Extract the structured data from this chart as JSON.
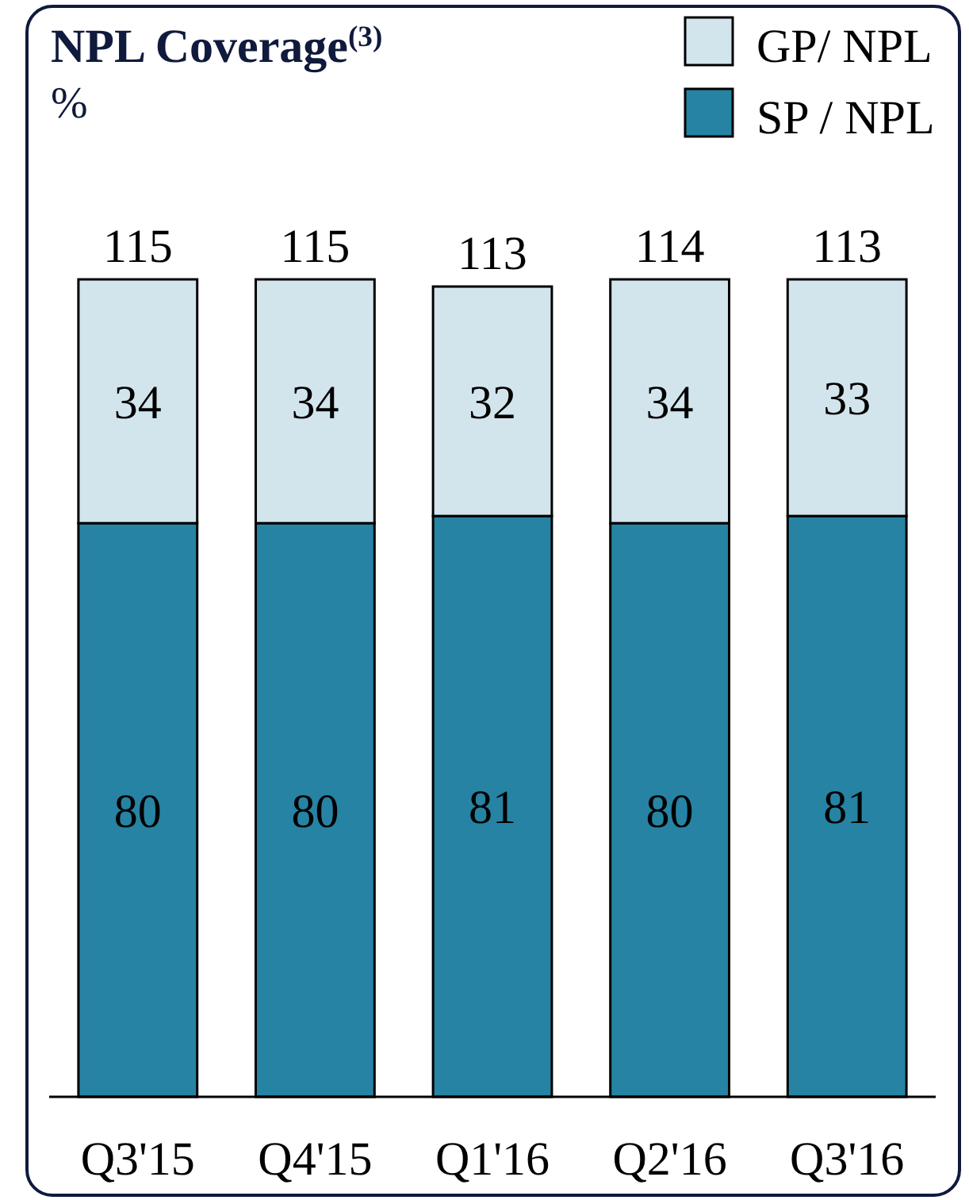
{
  "chart_data": {
    "type": "bar",
    "title": "NPL Coverage$^{(3)}$",
    "subtitle": "%",
    "categories": [
      "Q3'15",
      "Q4'15",
      "Q1'16",
      "Q2'16",
      "Q3'16"
    ],
    "stacked": true,
    "series": [
      {
        "name": "SP / NPL",
        "color": "#2683a3",
        "values": [
          80,
          80,
          81,
          80,
          81
        ]
      },
      {
        "name": "GP/ NPL",
        "color": "#d3e5ec",
        "values": [
          34,
          34,
          32,
          34,
          33
        ]
      }
    ],
    "data_labels": true,
    "totals": [
      "115",
      "115",
      "113",
      "114",
      "113"
    ],
    "legend": "top right"
  }
}
